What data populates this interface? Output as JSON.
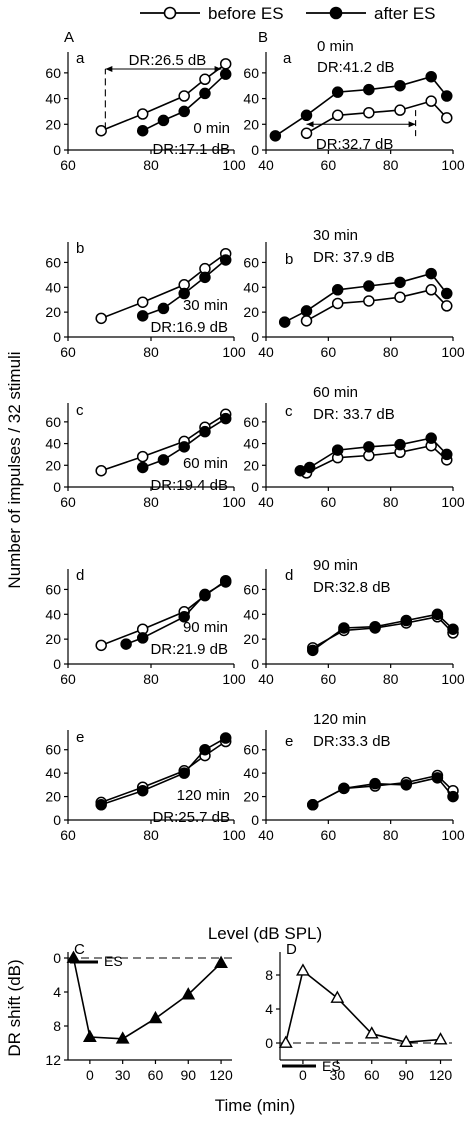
{
  "legend": {
    "before": "before ES",
    "after": "after ES"
  },
  "ylabel": "Number of impulses / 32 stimuli",
  "xlabel": "Level (dB SPL)",
  "c_ylabel": "DR shift (dB)",
  "c_xlabel": "Time (min)",
  "es_label": "ES",
  "chart_data": [
    {
      "type": "line",
      "panel": "A-a",
      "column_label": "A",
      "row_label": "a",
      "time_label": "0 min",
      "dr_label": "DR:17.1 dB",
      "extra_label": "DR:26.5 dB",
      "xlim": [
        60,
        100
      ],
      "ylim": [
        0,
        70
      ],
      "xticks": [
        60,
        80,
        100
      ],
      "yticks": [
        0,
        20,
        40,
        60
      ],
      "series": [
        {
          "name": "before ES",
          "x": [
            68,
            78,
            88,
            93,
            98
          ],
          "y": [
            15,
            28,
            42,
            55,
            67
          ]
        },
        {
          "name": "after ES",
          "x": [
            78,
            83,
            88,
            93,
            98
          ],
          "y": [
            15,
            23,
            30,
            44,
            59
          ]
        }
      ]
    },
    {
      "type": "line",
      "panel": "B-a",
      "column_label": "B",
      "row_label": "a",
      "time_label": "0 min",
      "dr_label": "DR:41.2 dB",
      "extra_label": "DR:32.7 dB",
      "xlim": [
        40,
        100
      ],
      "ylim": [
        0,
        70
      ],
      "xticks": [
        40,
        60,
        80,
        100
      ],
      "yticks": [
        0,
        20,
        40,
        60
      ],
      "series": [
        {
          "name": "before ES",
          "x": [
            53,
            63,
            73,
            83,
            93,
            98
          ],
          "y": [
            13,
            27,
            29,
            31,
            38,
            25
          ]
        },
        {
          "name": "after ES",
          "x": [
            43,
            53,
            63,
            73,
            83,
            93,
            98
          ],
          "y": [
            11,
            27,
            45,
            47,
            50,
            57,
            42
          ]
        }
      ]
    },
    {
      "type": "line",
      "panel": "A-b",
      "row_label": "b",
      "time_label": "30 min",
      "dr_label": "DR:16.9 dB",
      "xlim": [
        60,
        100
      ],
      "ylim": [
        0,
        70
      ],
      "xticks": [
        60,
        80,
        100
      ],
      "yticks": [
        0,
        20,
        40,
        60
      ],
      "series": [
        {
          "name": "before ES",
          "x": [
            68,
            78,
            88,
            93,
            98
          ],
          "y": [
            15,
            28,
            42,
            55,
            67
          ]
        },
        {
          "name": "after ES",
          "x": [
            78,
            83,
            88,
            93,
            98
          ],
          "y": [
            17,
            23,
            35,
            48,
            62
          ]
        }
      ]
    },
    {
      "type": "line",
      "panel": "B-b",
      "row_label": "b",
      "time_label": "30 min",
      "dr_label": "DR: 37.9 dB",
      "xlim": [
        40,
        100
      ],
      "ylim": [
        0,
        70
      ],
      "xticks": [
        40,
        60,
        80,
        100
      ],
      "yticks": [
        0,
        20,
        40,
        60
      ],
      "series": [
        {
          "name": "before ES",
          "x": [
            53,
            63,
            73,
            83,
            93,
            98
          ],
          "y": [
            13,
            27,
            29,
            32,
            38,
            25
          ]
        },
        {
          "name": "after ES",
          "x": [
            46,
            53,
            63,
            73,
            83,
            93,
            98
          ],
          "y": [
            12,
            21,
            38,
            41,
            44,
            51,
            35
          ]
        }
      ]
    },
    {
      "type": "line",
      "panel": "A-c",
      "row_label": "c",
      "time_label": "60 min",
      "dr_label": "DR:19.4 dB",
      "xlim": [
        60,
        100
      ],
      "ylim": [
        0,
        70
      ],
      "xticks": [
        60,
        80,
        100
      ],
      "yticks": [
        0,
        20,
        40,
        60
      ],
      "series": [
        {
          "name": "before ES",
          "x": [
            68,
            78,
            88,
            93,
            98
          ],
          "y": [
            15,
            28,
            42,
            55,
            67
          ]
        },
        {
          "name": "after ES",
          "x": [
            78,
            83,
            88,
            93,
            98
          ],
          "y": [
            18,
            25,
            37,
            51,
            63
          ]
        }
      ]
    },
    {
      "type": "line",
      "panel": "B-c",
      "row_label": "c",
      "time_label": "60 min",
      "dr_label": "DR: 33.7 dB",
      "xlim": [
        40,
        100
      ],
      "ylim": [
        0,
        70
      ],
      "xticks": [
        40,
        60,
        80,
        100
      ],
      "yticks": [
        0,
        20,
        40,
        60
      ],
      "series": [
        {
          "name": "before ES",
          "x": [
            53,
            63,
            73,
            83,
            93,
            98
          ],
          "y": [
            13,
            27,
            29,
            32,
            38,
            25
          ]
        },
        {
          "name": "after ES",
          "x": [
            51,
            54,
            63,
            73,
            83,
            93,
            98
          ],
          "y": [
            15,
            18,
            34,
            37,
            39,
            45,
            30
          ]
        }
      ]
    },
    {
      "type": "line",
      "panel": "A-d",
      "row_label": "d",
      "time_label": "90 min",
      "dr_label": "DR:21.9 dB",
      "xlim": [
        60,
        100
      ],
      "ylim": [
        0,
        70
      ],
      "xticks": [
        60,
        80,
        100
      ],
      "yticks": [
        0,
        20,
        40,
        60
      ],
      "series": [
        {
          "name": "before ES",
          "x": [
            68,
            78,
            88,
            93,
            98
          ],
          "y": [
            15,
            28,
            42,
            55,
            67
          ]
        },
        {
          "name": "after ES",
          "x": [
            74,
            78,
            88,
            93,
            98
          ],
          "y": [
            16,
            21,
            38,
            56,
            66
          ]
        }
      ]
    },
    {
      "type": "line",
      "panel": "B-d",
      "row_label": "d",
      "time_label": "90 min",
      "dr_label": "DR:32.8 dB",
      "xlim": [
        40,
        100
      ],
      "ylim": [
        0,
        70
      ],
      "xticks": [
        40,
        60,
        80,
        100
      ],
      "yticks": [
        0,
        20,
        40,
        60
      ],
      "series": [
        {
          "name": "before ES",
          "x": [
            55,
            65,
            75,
            85,
            95,
            100
          ],
          "y": [
            13,
            27,
            29,
            33,
            38,
            25
          ]
        },
        {
          "name": "after ES",
          "x": [
            55,
            65,
            75,
            85,
            95,
            100
          ],
          "y": [
            11,
            29,
            30,
            35,
            40,
            28
          ]
        }
      ]
    },
    {
      "type": "line",
      "panel": "A-e",
      "row_label": "e",
      "time_label": "120 min",
      "dr_label": "DR:25.7 dB",
      "xlim": [
        60,
        100
      ],
      "ylim": [
        0,
        70
      ],
      "xticks": [
        60,
        80,
        100
      ],
      "yticks": [
        0,
        20,
        40,
        60
      ],
      "series": [
        {
          "name": "before ES",
          "x": [
            68,
            78,
            88,
            93,
            98
          ],
          "y": [
            15,
            28,
            42,
            55,
            67
          ]
        },
        {
          "name": "after ES",
          "x": [
            68,
            78,
            88,
            93,
            98
          ],
          "y": [
            13,
            25,
            40,
            60,
            70
          ]
        }
      ]
    },
    {
      "type": "line",
      "panel": "B-e",
      "row_label": "e",
      "time_label": "120 min",
      "dr_label": "DR:33.3 dB",
      "xlim": [
        40,
        100
      ],
      "ylim": [
        0,
        70
      ],
      "xticks": [
        40,
        60,
        80,
        100
      ],
      "yticks": [
        0,
        20,
        40,
        60
      ],
      "series": [
        {
          "name": "before ES",
          "x": [
            55,
            65,
            75,
            85,
            95,
            100
          ],
          "y": [
            13,
            27,
            29,
            32,
            38,
            25
          ]
        },
        {
          "name": "after ES",
          "x": [
            55,
            65,
            75,
            85,
            95,
            100
          ],
          "y": [
            13,
            27,
            31,
            30,
            36,
            20
          ]
        }
      ]
    },
    {
      "type": "line",
      "panel": "C",
      "column_label": "C",
      "marker": "filled-triangle",
      "xlim": [
        -20,
        130
      ],
      "ylim": [
        0,
        12
      ],
      "y_inverted": true,
      "xticks": [
        0,
        30,
        60,
        90,
        120
      ],
      "yticks": [
        0,
        4,
        8,
        12
      ],
      "x": [
        -15,
        0,
        30,
        60,
        90,
        120
      ],
      "y": [
        0,
        9.3,
        9.5,
        7.1,
        4.3,
        0.6
      ]
    },
    {
      "type": "line",
      "panel": "D",
      "column_label": "D",
      "marker": "open-triangle",
      "xlim": [
        -20,
        130
      ],
      "ylim": [
        -2,
        10
      ],
      "xticks": [
        0,
        30,
        60,
        90,
        120
      ],
      "yticks": [
        0,
        4,
        8
      ],
      "x": [
        -15,
        0,
        30,
        60,
        90,
        120
      ],
      "y": [
        0,
        8.5,
        5.3,
        1.1,
        0.1,
        0.4
      ]
    }
  ]
}
